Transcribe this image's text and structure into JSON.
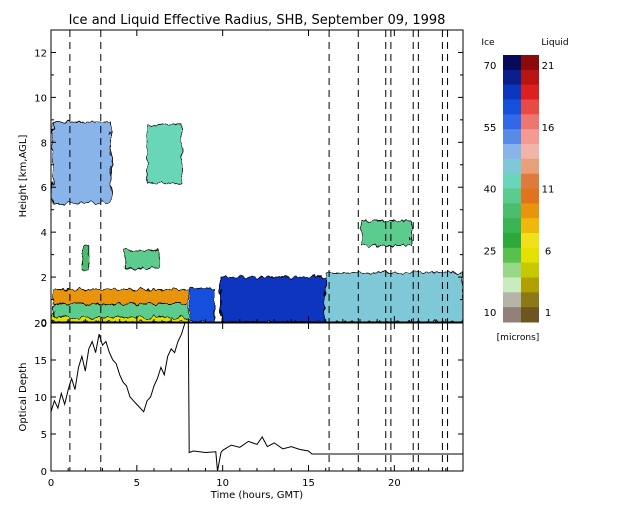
{
  "chart_data": [
    {
      "type": "heatmap",
      "title": "Ice and Liquid Effective Radius, SHB, September 09, 1998",
      "ylabel": "Height [km,AGL]",
      "xlim": [
        0,
        24
      ],
      "ylim": [
        0,
        13
      ],
      "y_ticks": [
        0,
        2,
        4,
        6,
        8,
        10,
        12
      ],
      "vertical_dashed_lines_hours": [
        1.1,
        2.9,
        16.2,
        17.9,
        19.5,
        19.8,
        21.1,
        21.4,
        22.8,
        23.1
      ],
      "colorbar": {
        "ice_label": "Ice",
        "liquid_label": "Liquid",
        "unit_label": "[microns]",
        "ice_ticks": [
          70,
          55,
          40,
          25,
          10
        ],
        "liquid_ticks": [
          21,
          16,
          11,
          6,
          1
        ],
        "ice_colors": [
          "#050a5a",
          "#0a1f8c",
          "#0d36bf",
          "#1550dc",
          "#3068e8",
          "#5a8ae8",
          "#88b4ea",
          "#7fc8d8",
          "#6ad6b8",
          "#5ccc8e",
          "#4cbc6e",
          "#38b452",
          "#2ea83c",
          "#58c04e",
          "#98d888",
          "#c8ecc0",
          "#b4b4a8",
          "#908078"
        ],
        "liquid_colors": [
          "#8c0a0a",
          "#b81414",
          "#dc2020",
          "#e84a46",
          "#ee7670",
          "#f49a92",
          "#f0b4a8",
          "#e8a078",
          "#e07a3c",
          "#e0741c",
          "#e8940c",
          "#f0b80a",
          "#f4e018",
          "#e4e000",
          "#c8c800",
          "#b0a000",
          "#8c7814",
          "#6e5420"
        ]
      },
      "cloud_layers": [
        {
          "phase": "ice",
          "x_start": 0.1,
          "x_end": 3.5,
          "y_bottom": 5.3,
          "y_top": 8.9,
          "effective_radius_microns": 50
        },
        {
          "phase": "ice",
          "x_start": 5.6,
          "x_end": 7.6,
          "y_bottom": 6.2,
          "y_top": 8.8,
          "effective_radius_microns": 42
        },
        {
          "phase": "ice",
          "x_start": 1.8,
          "x_end": 2.2,
          "y_bottom": 2.3,
          "y_top": 3.4,
          "effective_radius_microns": 35
        },
        {
          "phase": "ice",
          "x_start": 4.3,
          "x_end": 6.3,
          "y_bottom": 2.4,
          "y_top": 3.2,
          "effective_radius_microns": 38
        },
        {
          "phase": "ice",
          "x_start": 18.1,
          "x_end": 21.0,
          "y_bottom": 3.4,
          "y_top": 4.5,
          "effective_radius_microns": 40
        },
        {
          "phase": "liquid",
          "x_start": 0.1,
          "x_end": 8.0,
          "y_bottom": 0.8,
          "y_top": 1.45,
          "effective_radius_microns": 9
        },
        {
          "phase": "liquid",
          "x_start": 0.1,
          "x_end": 8.0,
          "y_bottom": 0.0,
          "y_top": 0.35,
          "effective_radius_microns": 6
        },
        {
          "phase": "ice",
          "x_start": 0.2,
          "x_end": 8.0,
          "y_bottom": 0.2,
          "y_top": 0.8,
          "effective_radius_microns": 38
        },
        {
          "phase": "ice",
          "x_start": 8.1,
          "x_end": 9.5,
          "y_bottom": 0.0,
          "y_top": 1.5,
          "effective_radius_microns": 60
        },
        {
          "phase": "ice",
          "x_start": 9.9,
          "x_end": 16.0,
          "y_bottom": 0.0,
          "y_top": 2.0,
          "effective_radius_microns": 62
        },
        {
          "phase": "ice",
          "x_start": 16.0,
          "x_end": 24.0,
          "y_bottom": 0.0,
          "y_top": 2.2,
          "effective_radius_microns": 45
        }
      ]
    },
    {
      "type": "line",
      "ylabel": "Optical Depth",
      "xlabel": "Time (hours, GMT)",
      "xlim": [
        0,
        24
      ],
      "ylim": [
        0,
        20
      ],
      "x_ticks": [
        0,
        5,
        10,
        15,
        20
      ],
      "y_ticks": [
        0,
        5,
        10,
        15,
        20
      ],
      "series": [
        {
          "x": [
            0.0,
            0.2,
            0.4,
            0.6,
            0.8,
            1.0,
            1.2,
            1.4,
            1.6,
            1.8,
            2.0,
            2.2,
            2.4,
            2.6,
            2.8,
            3.0,
            3.2,
            3.4,
            3.6,
            3.8,
            4.0,
            4.2,
            4.4,
            4.6,
            4.8,
            5.0,
            5.2,
            5.4,
            5.6,
            5.8,
            6.0,
            6.2,
            6.4,
            6.6,
            6.8,
            7.0,
            7.2,
            7.4,
            7.6,
            7.8,
            8.0,
            8.05,
            8.3,
            9.0,
            9.6,
            9.7,
            9.9,
            10.0,
            10.5,
            11.0,
            11.5,
            12.0,
            12.3,
            12.6,
            13.0,
            13.5,
            14.0,
            14.5,
            15.0,
            15.2,
            16.0,
            17.0,
            18.0,
            19.0,
            20.0,
            21.0,
            22.0,
            23.0,
            24.0
          ],
          "values": [
            8.0,
            9.5,
            8.5,
            10.5,
            9.0,
            11.0,
            12.5,
            11.0,
            14.0,
            15.5,
            13.5,
            16.5,
            17.5,
            16.0,
            18.5,
            17.0,
            17.5,
            16.0,
            15.0,
            14.5,
            13.0,
            12.0,
            11.5,
            10.0,
            9.5,
            9.0,
            8.5,
            8.0,
            9.5,
            10.0,
            11.5,
            12.5,
            14.0,
            13.0,
            15.5,
            16.5,
            16.0,
            17.5,
            18.5,
            20.0,
            20.0,
            2.5,
            2.7,
            2.5,
            2.6,
            0.0,
            2.5,
            2.8,
            3.5,
            3.2,
            4.0,
            3.6,
            4.6,
            3.3,
            3.8,
            3.0,
            3.3,
            2.9,
            2.7,
            2.3,
            2.3,
            2.3,
            2.3,
            2.3,
            2.3,
            2.3,
            2.3,
            2.3,
            2.3
          ]
        }
      ]
    }
  ]
}
